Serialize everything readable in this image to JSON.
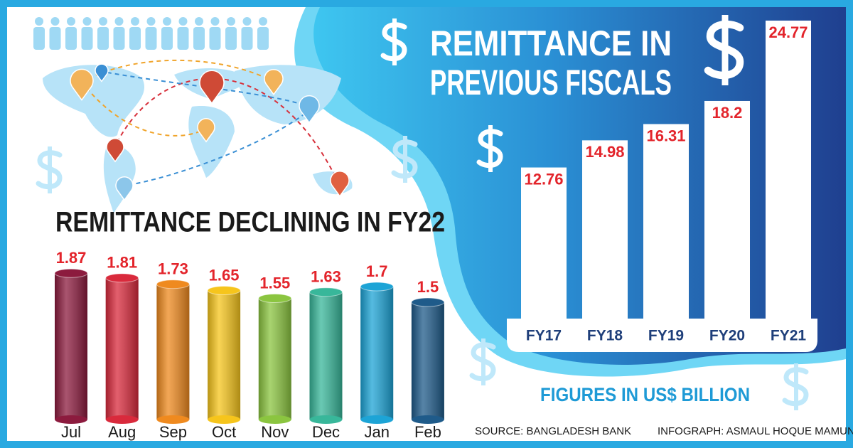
{
  "chart_data": [
    {
      "type": "bar",
      "title": "REMITTANCE DECLINING IN FY22",
      "categories": [
        "Jul",
        "Aug",
        "Sep",
        "Oct",
        "Nov",
        "Dec",
        "Jan",
        "Feb"
      ],
      "values": [
        1.87,
        1.81,
        1.73,
        1.65,
        1.55,
        1.63,
        1.7,
        1.5
      ],
      "colors": [
        "#8c1b3e",
        "#d92a3c",
        "#ef8a1f",
        "#f6c51c",
        "#8bc540",
        "#38b79a",
        "#1da4d6",
        "#1f5b8a"
      ],
      "label_color": "#e3242b"
    },
    {
      "type": "bar",
      "title": [
        "REMITTANCE IN",
        "PREVIOUS FISCALS"
      ],
      "categories": [
        "FY17",
        "FY18",
        "FY19",
        "FY20",
        "FY21"
      ],
      "values": [
        12.76,
        14.98,
        16.31,
        18.2,
        24.77
      ],
      "color": "#ffffff",
      "label_color": "#e3242b",
      "note": "FIGURES IN US$ BILLION"
    }
  ],
  "source": "SOURCE: BANGLADESH BANK",
  "credit": "INFOGRAPH: ASMAUL HOQUE MAMUN"
}
